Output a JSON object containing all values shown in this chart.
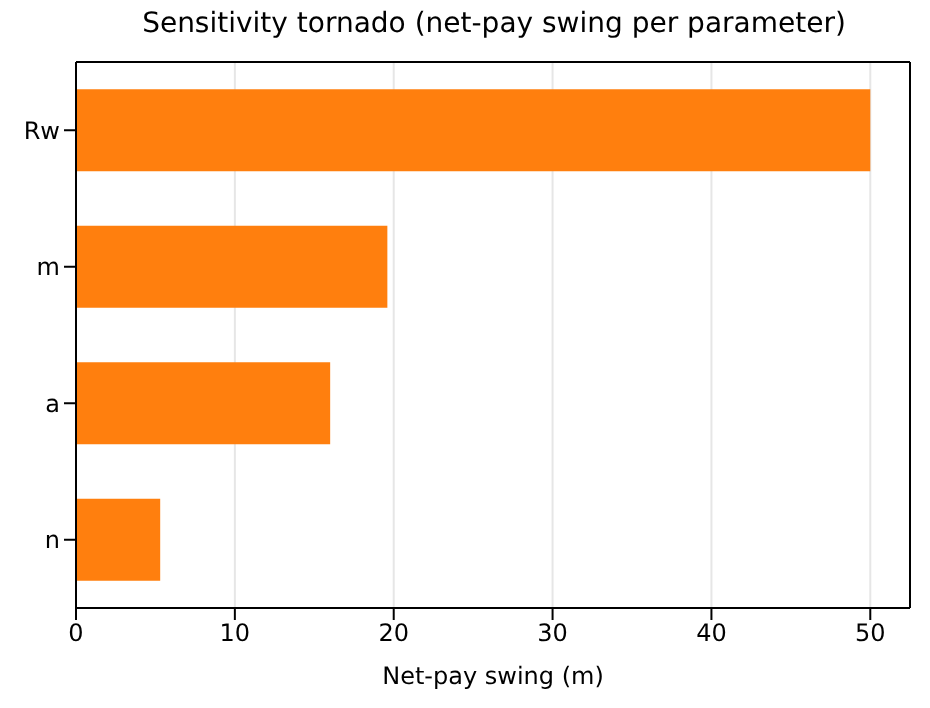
{
  "chart_data": {
    "type": "bar",
    "orientation": "horizontal",
    "title": "Sensitivity tornado (net-pay swing per parameter)",
    "xlabel": "Net-pay swing (m)",
    "categories": [
      "Rw",
      "m",
      "a",
      "n"
    ],
    "values": [
      50,
      19.6,
      16.0,
      5.3
    ],
    "color": "#ff7f0e",
    "xlim": [
      0,
      52.5
    ],
    "xticks": [
      0,
      10,
      20,
      30,
      40,
      50
    ],
    "grid": "x"
  }
}
